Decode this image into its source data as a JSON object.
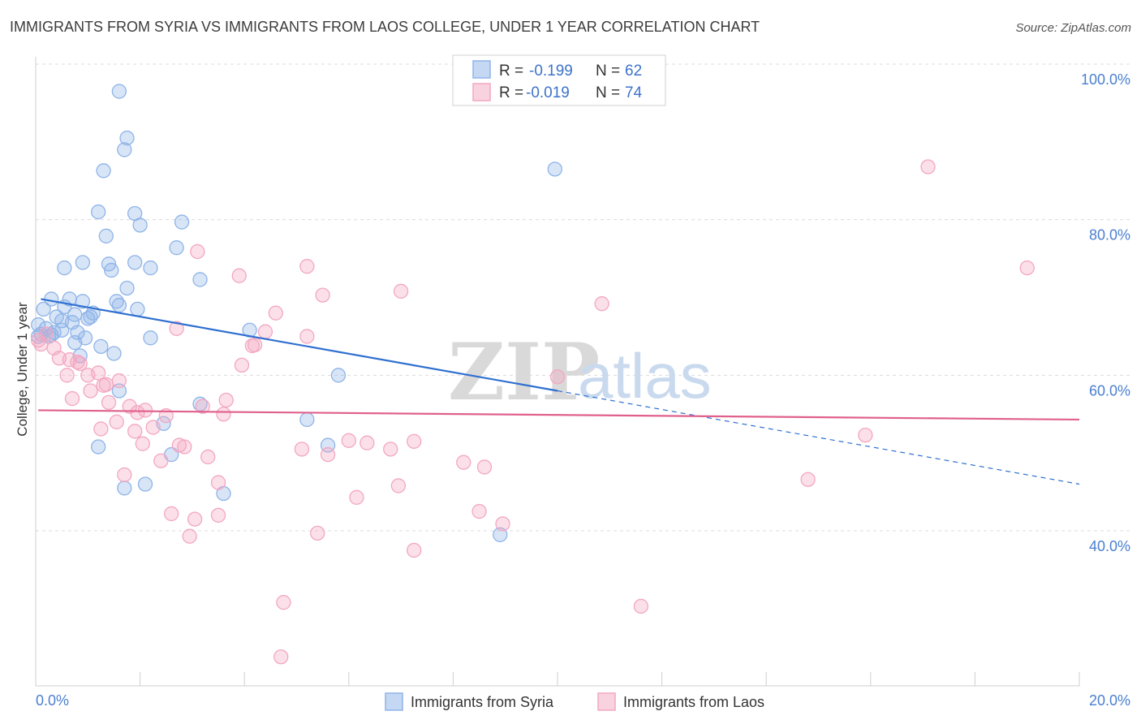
{
  "chart_data": {
    "type": "scatter",
    "title": "IMMIGRANTS FROM SYRIA VS IMMIGRANTS FROM LAOS COLLEGE, UNDER 1 YEAR CORRELATION CHART",
    "source": "Source: ZipAtlas.com",
    "xlabel": "",
    "ylabel": "College, Under 1 year",
    "xlim": [
      0,
      20
    ],
    "ylim": [
      20,
      102
    ],
    "x_ticks": [
      "0.0%",
      "20.0%"
    ],
    "y_ticks": [
      {
        "value": 100,
        "label": "100.0%"
      },
      {
        "value": 80,
        "label": "80.0%"
      },
      {
        "value": 60,
        "label": "60.0%"
      },
      {
        "value": 40,
        "label": "40.0%"
      }
    ],
    "grid": true,
    "legend_placement": "top-center",
    "watermark": {
      "zip": "ZIP",
      "atlas": "atlas"
    },
    "series": [
      {
        "name": "Immigrants from Syria",
        "color": "#8fb4e8",
        "line_color": "#2f6fd0",
        "stats": {
          "r_label": "R = ",
          "r": "-0.199",
          "n_label": "N = ",
          "n": "62"
        },
        "trend": {
          "x0": 0.1,
          "y0": 69.8,
          "x1": 10.0,
          "y1": 58.0,
          "x_dash_end": 20.0,
          "y_dash_end": 46.0
        },
        "points": [
          [
            1.6,
            96.5
          ],
          [
            1.75,
            90.5
          ],
          [
            1.7,
            89.0
          ],
          [
            1.3,
            86.3
          ],
          [
            9.95,
            86.5
          ],
          [
            1.2,
            81.0
          ],
          [
            1.9,
            80.8
          ],
          [
            2.0,
            79.3
          ],
          [
            2.8,
            79.7
          ],
          [
            1.35,
            77.9
          ],
          [
            2.7,
            76.4
          ],
          [
            0.9,
            74.5
          ],
          [
            1.4,
            74.3
          ],
          [
            1.9,
            74.5
          ],
          [
            0.55,
            73.8
          ],
          [
            1.45,
            73.5
          ],
          [
            2.2,
            73.8
          ],
          [
            3.15,
            72.3
          ],
          [
            1.75,
            71.2
          ],
          [
            0.3,
            69.8
          ],
          [
            0.65,
            69.8
          ],
          [
            0.9,
            69.5
          ],
          [
            1.6,
            69.0
          ],
          [
            1.55,
            69.5
          ],
          [
            0.55,
            68.8
          ],
          [
            0.15,
            68.5
          ],
          [
            0.4,
            67.5
          ],
          [
            0.75,
            67.8
          ],
          [
            1.1,
            68.0
          ],
          [
            0.5,
            67.0
          ],
          [
            0.7,
            66.8
          ],
          [
            1.0,
            67.3
          ],
          [
            1.05,
            67.5
          ],
          [
            1.95,
            68.5
          ],
          [
            0.05,
            66.5
          ],
          [
            0.2,
            66.0
          ],
          [
            0.35,
            65.5
          ],
          [
            0.1,
            65.3
          ],
          [
            0.05,
            65.0
          ],
          [
            0.25,
            65.0
          ],
          [
            0.3,
            65.2
          ],
          [
            0.8,
            65.5
          ],
          [
            0.95,
            64.8
          ],
          [
            0.75,
            64.2
          ],
          [
            2.2,
            64.8
          ],
          [
            4.1,
            65.8
          ],
          [
            0.85,
            62.5
          ],
          [
            1.25,
            63.7
          ],
          [
            1.5,
            62.8
          ],
          [
            1.6,
            58.0
          ],
          [
            5.8,
            60.0
          ],
          [
            3.15,
            56.3
          ],
          [
            2.45,
            53.8
          ],
          [
            5.2,
            54.3
          ],
          [
            1.2,
            50.8
          ],
          [
            2.6,
            49.8
          ],
          [
            5.6,
            51.0
          ],
          [
            2.1,
            46.0
          ],
          [
            1.7,
            45.5
          ],
          [
            3.6,
            44.8
          ],
          [
            8.9,
            39.5
          ],
          [
            0.5,
            65.8
          ]
        ]
      },
      {
        "name": "Immigrants from Laos",
        "color": "#f3a7c0",
        "line_color": "#e0608d",
        "stats": {
          "r_label": "R = ",
          "r": "-0.019",
          "n_label": "N = ",
          "n": "74"
        },
        "trend": {
          "x0": 0.05,
          "y0": 55.5,
          "x1": 20.0,
          "y1": 54.3
        },
        "points": [
          [
            17.1,
            86.8
          ],
          [
            19.0,
            73.8
          ],
          [
            3.1,
            75.9
          ],
          [
            5.2,
            74.0
          ],
          [
            3.9,
            72.8
          ],
          [
            7.0,
            70.8
          ],
          [
            5.5,
            70.3
          ],
          [
            10.85,
            69.2
          ],
          [
            4.6,
            68.0
          ],
          [
            2.7,
            66.0
          ],
          [
            4.4,
            65.6
          ],
          [
            5.2,
            65.0
          ],
          [
            4.2,
            63.9
          ],
          [
            4.15,
            63.8
          ],
          [
            0.05,
            64.5
          ],
          [
            0.1,
            64.0
          ],
          [
            0.35,
            63.5
          ],
          [
            0.45,
            62.2
          ],
          [
            0.65,
            62.0
          ],
          [
            0.8,
            61.7
          ],
          [
            3.95,
            61.3
          ],
          [
            0.6,
            60.0
          ],
          [
            1.0,
            60.0
          ],
          [
            1.2,
            60.3
          ],
          [
            1.6,
            59.3
          ],
          [
            1.05,
            58.0
          ],
          [
            1.3,
            58.7
          ],
          [
            10.0,
            59.8
          ],
          [
            0.7,
            57.0
          ],
          [
            1.4,
            56.5
          ],
          [
            1.8,
            56.0
          ],
          [
            2.1,
            55.5
          ],
          [
            3.65,
            56.8
          ],
          [
            3.2,
            56.0
          ],
          [
            1.95,
            55.2
          ],
          [
            2.5,
            54.8
          ],
          [
            3.6,
            55.0
          ],
          [
            1.55,
            54.0
          ],
          [
            1.25,
            53.1
          ],
          [
            1.9,
            52.8
          ],
          [
            2.25,
            53.3
          ],
          [
            2.05,
            51.2
          ],
          [
            2.75,
            51.0
          ],
          [
            2.85,
            50.8
          ],
          [
            6.35,
            51.3
          ],
          [
            6.0,
            51.6
          ],
          [
            7.25,
            51.5
          ],
          [
            6.8,
            50.5
          ],
          [
            5.1,
            50.5
          ],
          [
            3.3,
            49.5
          ],
          [
            5.6,
            49.8
          ],
          [
            2.4,
            49.0
          ],
          [
            15.9,
            52.3
          ],
          [
            8.2,
            48.8
          ],
          [
            8.6,
            48.2
          ],
          [
            1.7,
            47.2
          ],
          [
            3.5,
            46.2
          ],
          [
            6.95,
            45.8
          ],
          [
            6.15,
            44.3
          ],
          [
            14.8,
            46.6
          ],
          [
            2.6,
            42.2
          ],
          [
            3.5,
            42.0
          ],
          [
            3.05,
            41.5
          ],
          [
            8.5,
            42.5
          ],
          [
            8.95,
            40.9
          ],
          [
            5.4,
            39.7
          ],
          [
            2.95,
            39.3
          ],
          [
            7.25,
            37.5
          ],
          [
            4.75,
            30.8
          ],
          [
            11.6,
            30.3
          ],
          [
            4.7,
            23.8
          ],
          [
            0.2,
            65.3
          ],
          [
            0.85,
            61.5
          ],
          [
            1.35,
            58.8
          ]
        ]
      }
    ]
  }
}
